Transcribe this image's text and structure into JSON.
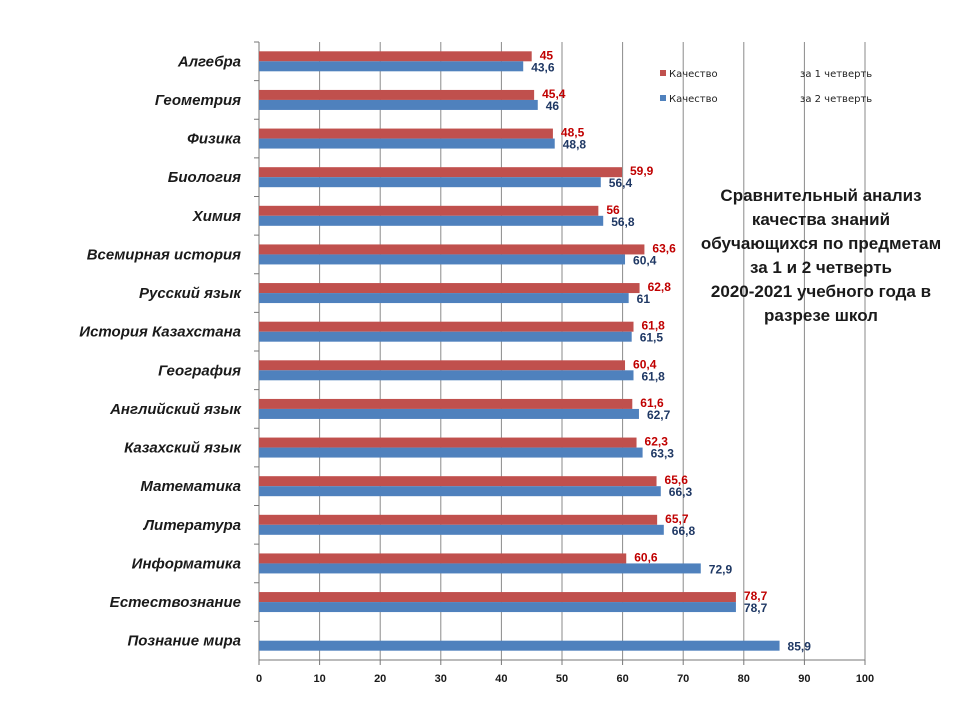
{
  "chart_data": {
    "type": "bar",
    "orientation": "horizontal",
    "categories": [
      "Алгебра",
      "Геометрия",
      "Физика",
      "Биология",
      "Химия",
      "Всемирная история",
      "Русский язык",
      "История Казахстана",
      "География",
      "Английский язык",
      "Казахский язык",
      "Математика",
      "Литература",
      "Информатика",
      "Естествознание",
      "Познание мира"
    ],
    "series": [
      {
        "name": "Качество за 1 четверть",
        "legend_label": "Качество",
        "legend_period": "за 1 четверть",
        "color": "#C0504D",
        "label_color": "#C00000",
        "values": [
          45,
          45.4,
          48.5,
          59.9,
          56,
          63.6,
          62.8,
          61.8,
          60.4,
          61.6,
          62.3,
          65.6,
          65.7,
          60.6,
          78.7,
          null
        ],
        "labels": [
          "45",
          "45,4",
          "48,5",
          "59,9",
          "56",
          "63,6",
          "62,8",
          "61,8",
          "60,4",
          "61,6",
          "62,3",
          "65,6",
          "65,7",
          "60,6",
          "78,7",
          ""
        ]
      },
      {
        "name": "Качество за 2 четверть",
        "legend_label": "Качество",
        "legend_period": "за 2 четверть",
        "color": "#4F81BD",
        "label_color": "#1F3864",
        "values": [
          43.6,
          46,
          48.8,
          56.4,
          56.8,
          60.4,
          61,
          61.5,
          61.8,
          62.7,
          63.3,
          66.3,
          66.8,
          72.9,
          78.7,
          85.9
        ],
        "labels": [
          "43,6",
          "46",
          "48,8",
          "56,4",
          "56,8",
          "60,4",
          "61",
          "61,5",
          "61,8",
          "62,7",
          "63,3",
          "66,3",
          "66,8",
          "72,9",
          "78,7",
          "85,9"
        ]
      }
    ],
    "xlim": [
      0,
      100
    ],
    "xticks": [
      "0",
      "10",
      "20",
      "30",
      "40",
      "50",
      "60",
      "70",
      "80",
      "90",
      "100"
    ],
    "grid": true,
    "legend_position": "top-right",
    "title_lines": [
      "Сравнительный  анализ",
      "качества знаний",
      "обучающихся по предметам",
      "за 1 и 2 четверть",
      "2020-2021 учебного  года  в",
      "разрезе школ"
    ]
  }
}
